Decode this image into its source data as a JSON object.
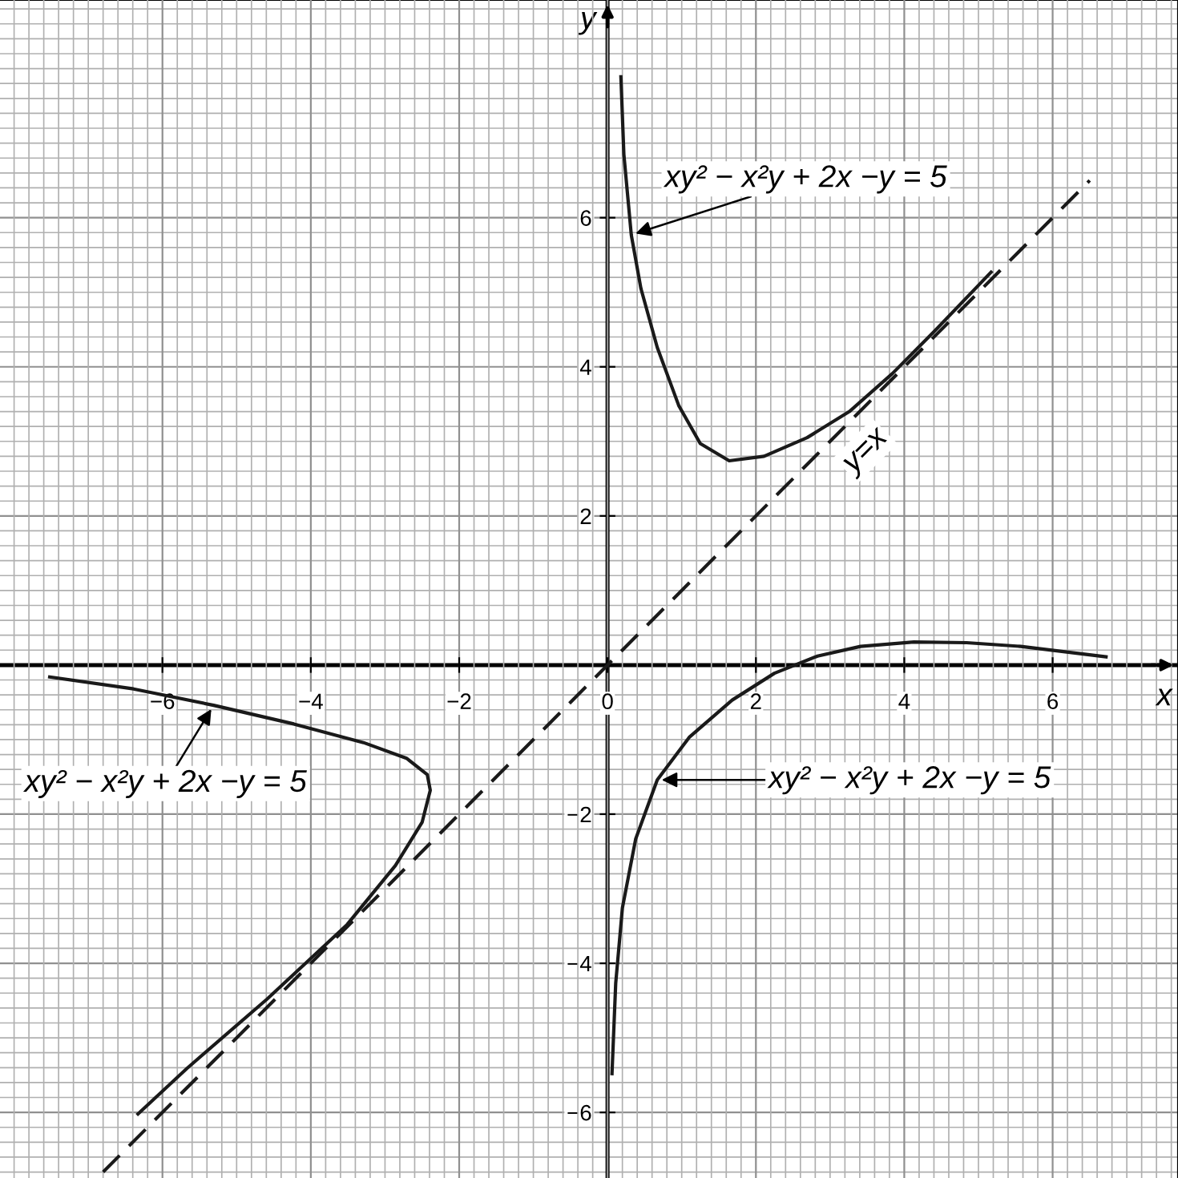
{
  "chart_data": {
    "type": "line",
    "xlabel": "x",
    "ylabel": "y",
    "xlim": [
      -8.19,
      7.69
    ],
    "ylim": [
      -6.88,
      8.92
    ],
    "xticks": [
      -6,
      -4,
      -2,
      {
        "value": 0,
        "label": "0"
      },
      2,
      4,
      6
    ],
    "yticks": [
      -6,
      -4,
      -2,
      2,
      4,
      6
    ],
    "grid": true,
    "legend": false,
    "marker": "none",
    "series": [
      {
        "name": "xy² − x²y + 2x −y = 5",
        "color": "#1a1a1a",
        "line_style": "solid",
        "x": [
          0.18,
          0.22,
          0.32,
          0.45,
          0.67,
          0.96,
          1.25,
          1.64,
          2.11,
          2.69,
          3.26,
          3.84,
          4.41,
          5.17
        ],
        "values": [
          7.89,
          6.85,
          5.77,
          5.05,
          4.26,
          3.48,
          2.97,
          2.74,
          2.8,
          3.05,
          3.4,
          3.91,
          4.48,
          5.27
        ]
      },
      {
        "name": "xy² − x²y + 2x −y = 5",
        "color": "#1a1a1a",
        "line_style": "solid",
        "x": [
          0.06,
          0.11,
          0.2,
          0.38,
          0.67,
          1.1,
          1.68,
          2.25,
          2.83,
          3.41,
          4.13,
          4.84,
          5.57,
          6.72
        ],
        "values": [
          -5.48,
          -4.27,
          -3.26,
          -2.33,
          -1.54,
          -0.97,
          -0.47,
          -0.11,
          0.12,
          0.25,
          0.31,
          0.3,
          0.25,
          0.11
        ]
      },
      {
        "name": "xy² − x²y + 2x −y = 5",
        "color": "#1a1a1a",
        "line_style": "solid",
        "x": [
          -7.52,
          -6.39,
          -5.31,
          -4.23,
          -3.29,
          -2.71,
          -2.43,
          -2.39,
          -2.5,
          -2.86,
          -3.51,
          -4.59,
          -5.67,
          -6.33
        ],
        "values": [
          -0.16,
          -0.32,
          -0.54,
          -0.79,
          -1.04,
          -1.25,
          -1.47,
          -1.68,
          -2.11,
          -2.69,
          -3.48,
          -4.48,
          -5.41,
          -6.02
        ]
      },
      {
        "name": "y=x",
        "color": "#1a1a1a",
        "line_style": "dashed",
        "x": [
          -6.8,
          6.5
        ],
        "values": [
          -6.8,
          6.5
        ]
      }
    ]
  }
}
